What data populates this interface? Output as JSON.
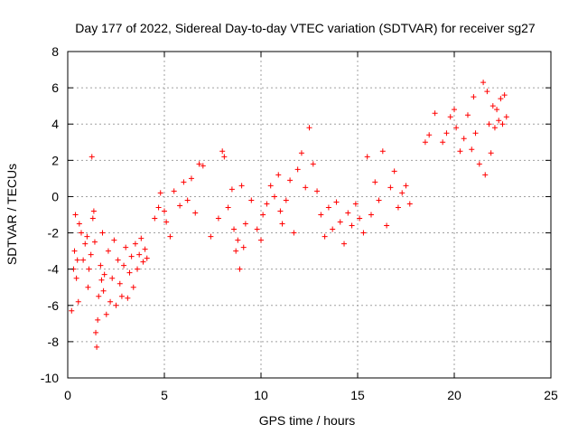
{
  "chart_data": {
    "type": "scatter",
    "title": "Day 177 of 2022, Sidereal Day-to-day VTEC variation (SDTVAR) for receiver sg27",
    "xlabel": "GPS time / hours",
    "ylabel": "SDTVAR / TECUs",
    "xlim": [
      0,
      25
    ],
    "ylim": [
      -10,
      8
    ],
    "xticks": [
      "0",
      "5",
      "10",
      "15",
      "20",
      "25"
    ],
    "yticks": [
      "-10",
      "-8",
      "-6",
      "-4",
      "-2",
      "0",
      "2",
      "4",
      "6",
      "8"
    ],
    "grid": true,
    "marker": "+",
    "color": "#ff0000",
    "series": [
      {
        "name": "SDTVAR",
        "points": [
          [
            0.2,
            -6.3
          ],
          [
            0.3,
            -4.0
          ],
          [
            0.35,
            -3.0
          ],
          [
            0.4,
            -1.0
          ],
          [
            0.45,
            -4.5
          ],
          [
            0.5,
            -3.5
          ],
          [
            0.55,
            -5.8
          ],
          [
            0.6,
            -1.5
          ],
          [
            0.7,
            -2.0
          ],
          [
            0.8,
            -3.5
          ],
          [
            0.9,
            -2.6
          ],
          [
            1.0,
            -2.2
          ],
          [
            1.05,
            -5.0
          ],
          [
            1.1,
            -4.0
          ],
          [
            1.2,
            -3.2
          ],
          [
            1.25,
            2.2
          ],
          [
            1.3,
            -1.2
          ],
          [
            1.35,
            -0.8
          ],
          [
            1.4,
            -2.5
          ],
          [
            1.45,
            -7.5
          ],
          [
            1.5,
            -8.3
          ],
          [
            1.55,
            -6.8
          ],
          [
            1.6,
            -5.5
          ],
          [
            1.7,
            -3.8
          ],
          [
            1.75,
            -4.6
          ],
          [
            1.8,
            -2.0
          ],
          [
            1.85,
            -5.2
          ],
          [
            1.9,
            -4.3
          ],
          [
            2.0,
            -6.5
          ],
          [
            2.1,
            -3.0
          ],
          [
            2.2,
            -5.8
          ],
          [
            2.3,
            -4.5
          ],
          [
            2.4,
            -2.4
          ],
          [
            2.5,
            -6.0
          ],
          [
            2.6,
            -3.5
          ],
          [
            2.7,
            -4.8
          ],
          [
            2.8,
            -5.5
          ],
          [
            2.9,
            -3.8
          ],
          [
            3.0,
            -2.8
          ],
          [
            3.1,
            -5.6
          ],
          [
            3.2,
            -4.2
          ],
          [
            3.3,
            -3.3
          ],
          [
            3.4,
            -5.0
          ],
          [
            3.5,
            -2.6
          ],
          [
            3.6,
            -4.0
          ],
          [
            3.7,
            -3.2
          ],
          [
            3.8,
            -2.3
          ],
          [
            3.9,
            -3.6
          ],
          [
            4.0,
            -2.9
          ],
          [
            4.1,
            -3.4
          ],
          [
            4.5,
            -1.2
          ],
          [
            4.7,
            -0.6
          ],
          [
            4.8,
            0.2
          ],
          [
            5.0,
            -0.8
          ],
          [
            5.1,
            -1.4
          ],
          [
            5.3,
            -2.2
          ],
          [
            5.5,
            0.3
          ],
          [
            5.8,
            -0.5
          ],
          [
            6.0,
            0.8
          ],
          [
            6.2,
            -0.2
          ],
          [
            6.4,
            1.0
          ],
          [
            6.6,
            -0.9
          ],
          [
            6.8,
            1.8
          ],
          [
            7.0,
            1.7
          ],
          [
            7.4,
            -2.2
          ],
          [
            7.8,
            -1.2
          ],
          [
            8.0,
            2.5
          ],
          [
            8.1,
            2.2
          ],
          [
            8.3,
            -0.6
          ],
          [
            8.5,
            0.4
          ],
          [
            8.6,
            -1.8
          ],
          [
            8.7,
            -3.0
          ],
          [
            8.8,
            -2.4
          ],
          [
            8.9,
            -4.0
          ],
          [
            9.0,
            0.6
          ],
          [
            9.1,
            -2.8
          ],
          [
            9.2,
            -1.5
          ],
          [
            9.5,
            -0.2
          ],
          [
            9.8,
            -1.8
          ],
          [
            10.0,
            -2.4
          ],
          [
            10.1,
            -1.0
          ],
          [
            10.3,
            -0.4
          ],
          [
            10.5,
            0.6
          ],
          [
            10.7,
            0.0
          ],
          [
            10.9,
            1.2
          ],
          [
            11.0,
            -0.8
          ],
          [
            11.1,
            -1.5
          ],
          [
            11.3,
            -0.2
          ],
          [
            11.5,
            0.9
          ],
          [
            11.7,
            -2.0
          ],
          [
            11.9,
            1.5
          ],
          [
            12.1,
            2.4
          ],
          [
            12.3,
            0.5
          ],
          [
            12.5,
            3.8
          ],
          [
            12.7,
            1.8
          ],
          [
            12.9,
            0.3
          ],
          [
            13.1,
            -1.0
          ],
          [
            13.3,
            -2.2
          ],
          [
            13.5,
            -0.6
          ],
          [
            13.7,
            -1.8
          ],
          [
            13.9,
            -0.3
          ],
          [
            14.1,
            -1.4
          ],
          [
            14.3,
            -2.6
          ],
          [
            14.5,
            -0.9
          ],
          [
            14.7,
            -1.6
          ],
          [
            14.9,
            -0.4
          ],
          [
            15.1,
            -1.2
          ],
          [
            15.3,
            -2.0
          ],
          [
            15.5,
            2.2
          ],
          [
            15.7,
            -1.0
          ],
          [
            15.9,
            0.8
          ],
          [
            16.1,
            -0.2
          ],
          [
            16.3,
            2.5
          ],
          [
            16.5,
            -1.6
          ],
          [
            16.7,
            0.5
          ],
          [
            16.9,
            1.4
          ],
          [
            17.1,
            -0.6
          ],
          [
            17.3,
            0.2
          ],
          [
            17.5,
            0.6
          ],
          [
            17.7,
            -0.4
          ],
          [
            18.5,
            3.0
          ],
          [
            18.7,
            3.4
          ],
          [
            19.0,
            4.6
          ],
          [
            19.4,
            3.0
          ],
          [
            19.6,
            3.5
          ],
          [
            19.8,
            4.4
          ],
          [
            20.0,
            4.8
          ],
          [
            20.1,
            3.8
          ],
          [
            20.3,
            2.5
          ],
          [
            20.5,
            3.2
          ],
          [
            20.7,
            4.5
          ],
          [
            20.9,
            2.6
          ],
          [
            21.0,
            5.5
          ],
          [
            21.1,
            3.5
          ],
          [
            21.3,
            1.8
          ],
          [
            21.5,
            6.3
          ],
          [
            21.6,
            1.2
          ],
          [
            21.7,
            5.8
          ],
          [
            21.8,
            4.0
          ],
          [
            21.9,
            2.4
          ],
          [
            22.0,
            5.0
          ],
          [
            22.1,
            3.8
          ],
          [
            22.2,
            4.8
          ],
          [
            22.3,
            4.2
          ],
          [
            22.4,
            5.4
          ],
          [
            22.5,
            4.0
          ],
          [
            22.6,
            5.6
          ],
          [
            22.7,
            4.4
          ]
        ]
      }
    ]
  }
}
